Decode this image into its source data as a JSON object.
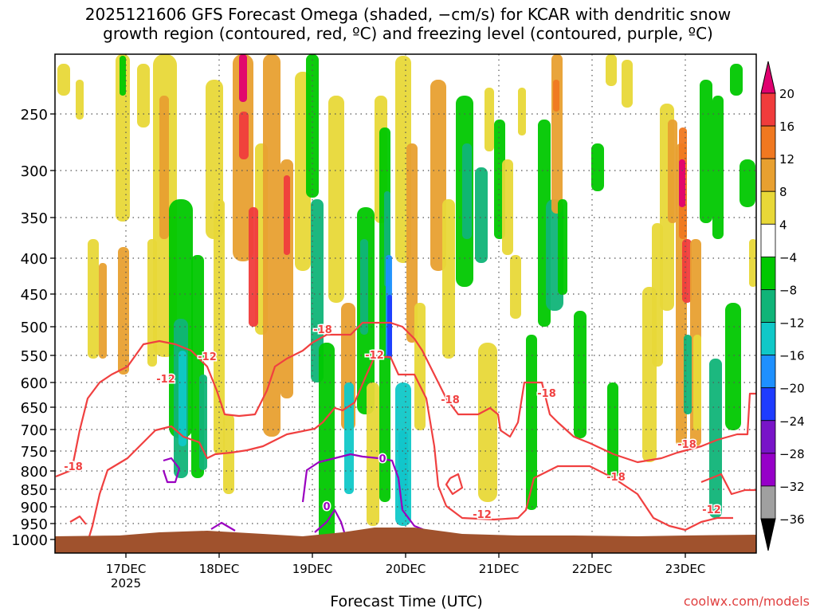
{
  "chart_data": {
    "type": "heatmap",
    "title_lines": [
      "2025121606 GFS Forecast Omega (shaded, −cm/s) for KCAR with dendritic snow",
      "growth region (contoured, red, ºC) and freezing level (contoured, purple, ºC)"
    ],
    "xlabel": "Forecast Time (UTC)",
    "ylabel": "",
    "y_ticks": [
      250,
      300,
      350,
      400,
      450,
      500,
      550,
      600,
      650,
      700,
      750,
      800,
      850,
      900,
      950,
      1000
    ],
    "x_ticks": [
      "17DEC",
      "18DEC",
      "19DEC",
      "20DEC",
      "21DEC",
      "22DEC",
      "23DEC"
    ],
    "x_tick_sublabel": "2025",
    "colorbar": {
      "labels": [
        "20",
        "16",
        "12",
        "8",
        "4",
        "−4",
        "−8",
        "−12",
        "−16",
        "−20",
        "−24",
        "−28",
        "−32",
        "−36"
      ],
      "colors": [
        "#e00070",
        "#f03c3c",
        "#f07820",
        "#e8a030",
        "#e8d838",
        "#ffffff",
        "#00c800",
        "#10b478",
        "#10c8c8",
        "#1e90ff",
        "#1e3cff",
        "#7814c8",
        "#9600c8",
        "#a0a0a0",
        "#000000"
      ]
    },
    "contour_labels": {
      "dgz_red": [
        "-18",
        "-18",
        "-12",
        "-18",
        "-12",
        "-18",
        "-18",
        "-12",
        "-18",
        "-12",
        "-12"
      ],
      "freezing_purple": [
        "0",
        "0"
      ]
    },
    "grid": true
  },
  "credit": "coolwx.com/models",
  "colors": {
    "terrain": "#a0522d",
    "dgz_contour": "#f04040",
    "freezing_contour": "#9a00c0",
    "grid": "#555555"
  }
}
